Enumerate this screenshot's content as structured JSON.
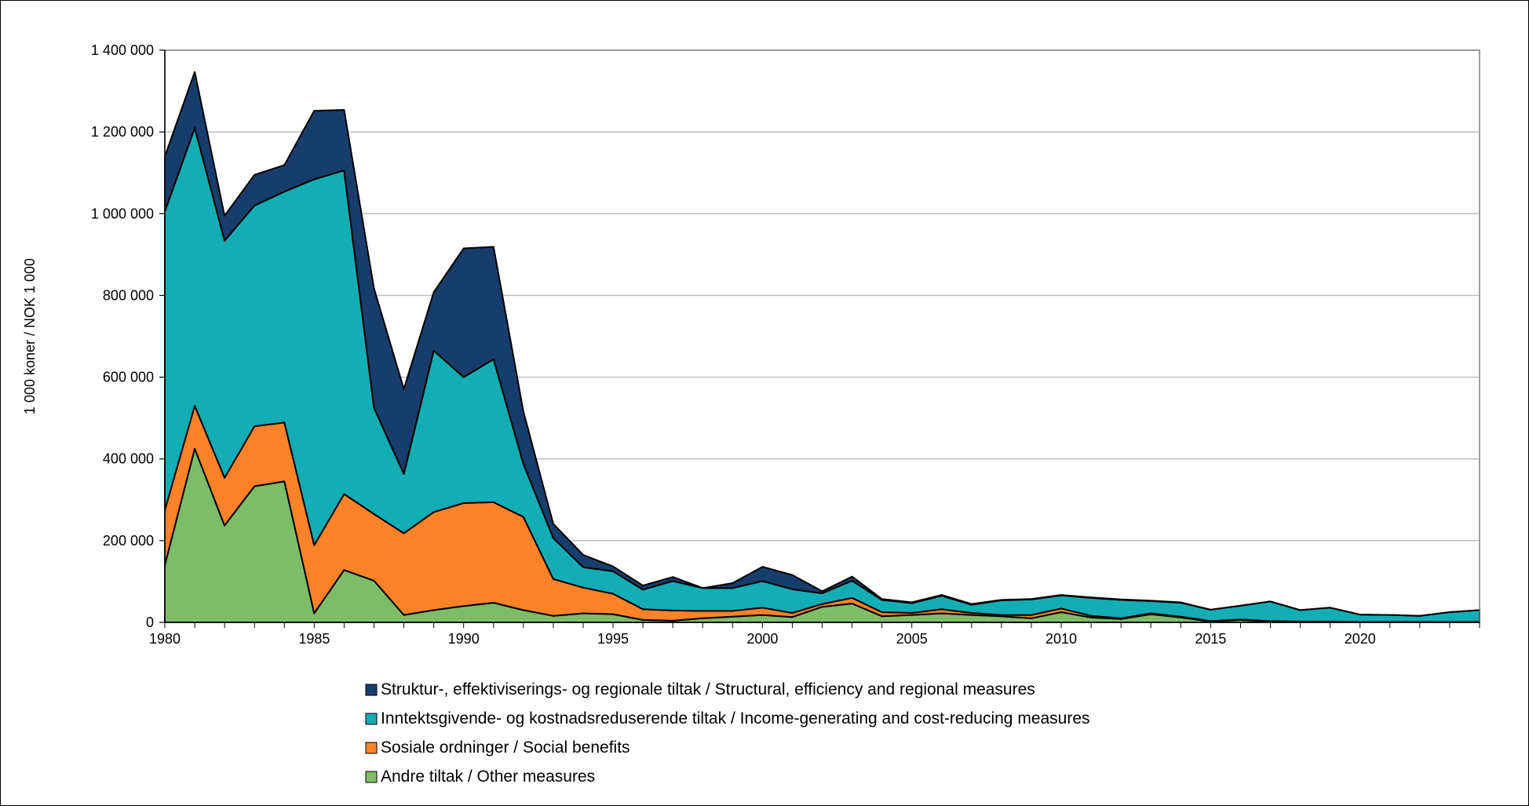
{
  "chart_data": {
    "type": "area",
    "stacked": true,
    "ylabel": "1 000 koner / NOK 1 000",
    "xlabel": "",
    "xlim": [
      1980,
      2024
    ],
    "ylim": [
      0,
      1400000
    ],
    "x_ticks": [
      "1980",
      "1985",
      "1990",
      "1995",
      "2000",
      "2005",
      "2010",
      "2015",
      "2020"
    ],
    "y_ticks": [
      "0",
      "200 000",
      "400 000",
      "600 000",
      "800 000",
      "1 000 000",
      "1 200 000",
      "1 400 000"
    ],
    "grid": "horizontal",
    "legend_position": "bottom-center",
    "x": [
      1980,
      1981,
      1982,
      1983,
      1984,
      1985,
      1986,
      1987,
      1988,
      1989,
      1990,
      1991,
      1992,
      1993,
      1994,
      1995,
      1996,
      1997,
      1998,
      1999,
      2000,
      2001,
      2002,
      2003,
      2004,
      2005,
      2006,
      2007,
      2008,
      2009,
      2010,
      2011,
      2012,
      2013,
      2014,
      2015,
      2016,
      2017,
      2018,
      2019,
      2020,
      2021,
      2022,
      2023,
      2024
    ],
    "series": [
      {
        "name": "Andre tiltak / Other measures",
        "color": "#7dbd68",
        "values": [
          140000,
          425000,
          237000,
          333000,
          345000,
          22000,
          128000,
          102000,
          18000,
          30000,
          40000,
          48000,
          30000,
          16000,
          22000,
          20000,
          6000,
          4000,
          10000,
          14000,
          18000,
          13000,
          38000,
          46000,
          15000,
          18000,
          22000,
          18000,
          15000,
          10000,
          25000,
          12000,
          8000,
          20000,
          12000,
          2000,
          6000,
          2000,
          2000,
          2000,
          1000,
          1000,
          1000,
          1000,
          1000
        ]
      },
      {
        "name": "Sosiale ordninger / Social benefits",
        "color": "#fb8227",
        "values": [
          135000,
          105000,
          117000,
          147000,
          144000,
          167000,
          186000,
          163000,
          200000,
          240000,
          252000,
          246000,
          228000,
          90000,
          63000,
          50000,
          26000,
          25000,
          18000,
          14000,
          18000,
          10000,
          7000,
          14000,
          10000,
          5000,
          10000,
          5000,
          3000,
          8000,
          9000,
          4000,
          2000,
          2000,
          2000,
          1000,
          1000,
          1000,
          0,
          0,
          0,
          0,
          0,
          0,
          0
        ]
      },
      {
        "name": "Inntektsgivende- og kostnadsreduserende tiltak / Income-generating and cost-reducing measures",
        "color": "#13adb5",
        "values": [
          730000,
          680000,
          580000,
          540000,
          565000,
          895000,
          792000,
          260000,
          145000,
          395000,
          308000,
          350000,
          130000,
          100000,
          50000,
          55000,
          48000,
          72000,
          56000,
          56000,
          65000,
          58000,
          26000,
          42000,
          30000,
          24000,
          33000,
          20000,
          36000,
          38000,
          32000,
          44000,
          45000,
          30000,
          34000,
          28000,
          34000,
          48000,
          28000,
          34000,
          18000,
          17000,
          15000,
          24000,
          29000
        ]
      },
      {
        "name": "Struktur-, effektiviserings- og regionale tiltak / Structural, efficiency and regional measures",
        "color": "#173d6d",
        "values": [
          135000,
          137000,
          61000,
          75000,
          65000,
          168000,
          148000,
          292000,
          208000,
          143000,
          315000,
          275000,
          128000,
          35000,
          30000,
          12000,
          10000,
          10000,
          0,
          12000,
          35000,
          35000,
          5000,
          10000,
          2000,
          2000,
          2000,
          2000,
          1000,
          1000,
          1000,
          1000,
          1000,
          1000,
          1000,
          0,
          0,
          0,
          0,
          0,
          0,
          0,
          0,
          0,
          0
        ]
      }
    ]
  }
}
